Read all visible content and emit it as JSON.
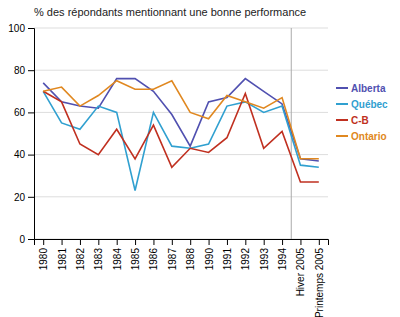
{
  "chart_data": {
    "type": "line",
    "title": "% des répondants mentionnant une bonne performance",
    "categories": [
      "1980",
      "1981",
      "1982",
      "1983",
      "1984",
      "1985",
      "1986",
      "1987",
      "1988",
      "1990",
      "1991",
      "1992",
      "1993",
      "1994",
      "Hiver 2005",
      "Printemps 2005"
    ],
    "series": [
      {
        "name": "Alberta",
        "color": "#5050b0",
        "values": [
          74,
          65,
          63,
          62,
          76,
          76,
          70,
          59,
          44,
          65,
          67,
          76,
          70,
          64,
          38,
          37
        ]
      },
      {
        "name": "Québec",
        "color": "#30a0d0",
        "values": [
          70,
          55,
          52,
          63,
          60,
          23,
          60,
          44,
          43,
          45,
          63,
          65,
          60,
          63,
          35,
          34
        ]
      },
      {
        "name": "C-B",
        "color": "#c03020",
        "values": [
          70,
          65,
          45,
          40,
          52,
          38,
          54,
          34,
          43,
          41,
          48,
          69,
          43,
          51,
          27,
          27
        ]
      },
      {
        "name": "Ontario",
        "color": "#e08820",
        "values": [
          70,
          72,
          63,
          68,
          75,
          71,
          71,
          75,
          60,
          57,
          68,
          65,
          62,
          67,
          38,
          38
        ]
      }
    ],
    "ylim": [
      0,
      100
    ],
    "yticks": [
      0,
      20,
      40,
      60,
      80,
      100
    ],
    "grid": true,
    "legend": "right"
  }
}
